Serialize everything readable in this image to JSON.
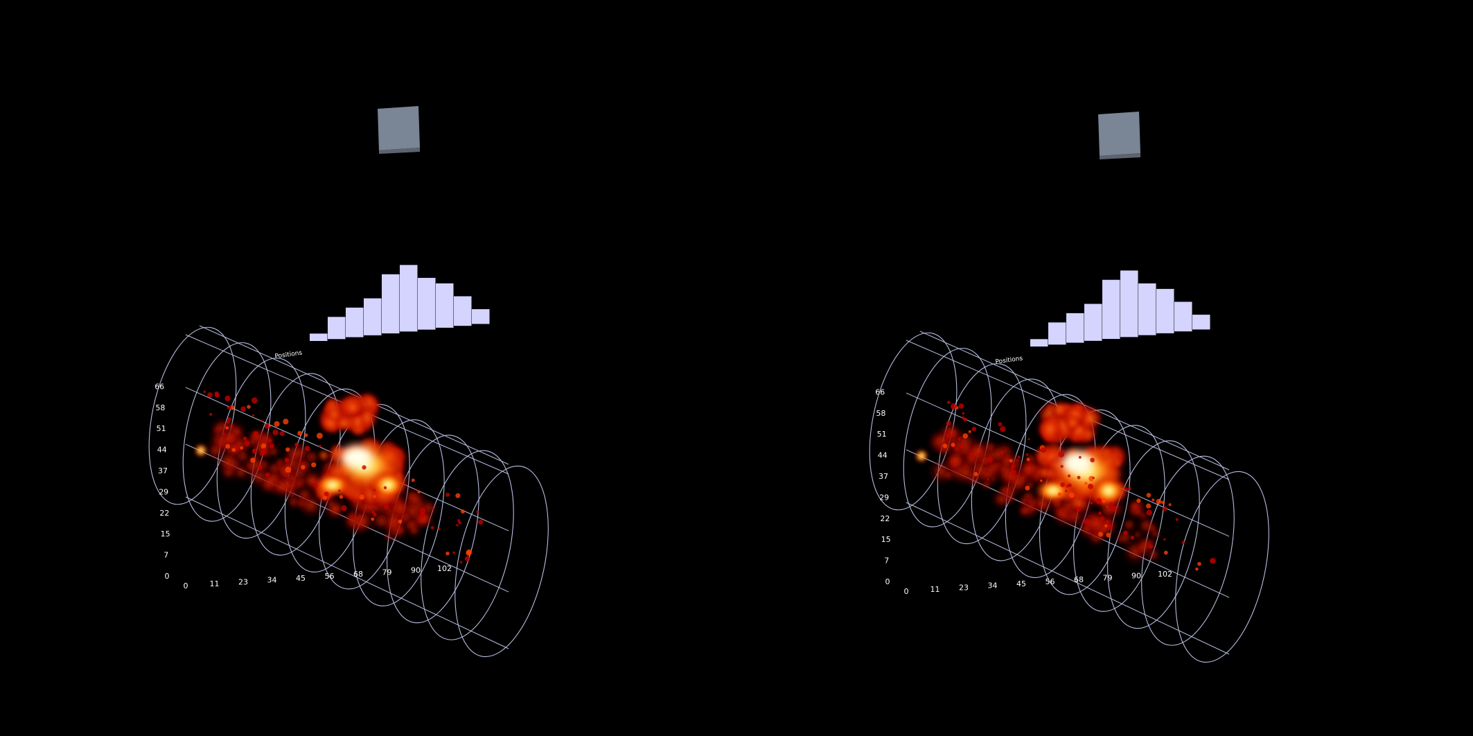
{
  "chart_data": [
    {
      "type": "heatmap",
      "view": "left",
      "title": "",
      "axis_label": "Positions",
      "y_ticks": [
        "0",
        "7",
        "15",
        "22",
        "29",
        "37",
        "44",
        "51",
        "58",
        "66"
      ],
      "x_ticks": [
        "0",
        "11",
        "23",
        "34",
        "45",
        "56",
        "68",
        "79",
        "90",
        "102"
      ],
      "histogram": {
        "type": "bar",
        "values": [
          1,
          3,
          4,
          5,
          8,
          9,
          7,
          6,
          4,
          2
        ]
      },
      "colormap": "hot"
    },
    {
      "type": "heatmap",
      "view": "right",
      "title": "",
      "axis_label": "Positions",
      "y_ticks": [
        "0",
        "7",
        "15",
        "22",
        "29",
        "37",
        "44",
        "51",
        "58",
        "66"
      ],
      "x_ticks": [
        "0",
        "11",
        "23",
        "34",
        "45",
        "56",
        "68",
        "79",
        "90",
        "102"
      ],
      "histogram": {
        "type": "bar",
        "values": [
          1,
          3,
          4,
          5,
          8,
          9,
          7,
          6,
          4,
          2
        ]
      },
      "colormap": "hot"
    }
  ],
  "colors": {
    "background": "#000000",
    "wireframe": "#b8bfe0",
    "bars": "#d4d4ff",
    "cube": "#7a8595",
    "heat_low": "#8b0000",
    "heat_mid": "#ff2a00",
    "heat_high": "#ffffc8"
  }
}
